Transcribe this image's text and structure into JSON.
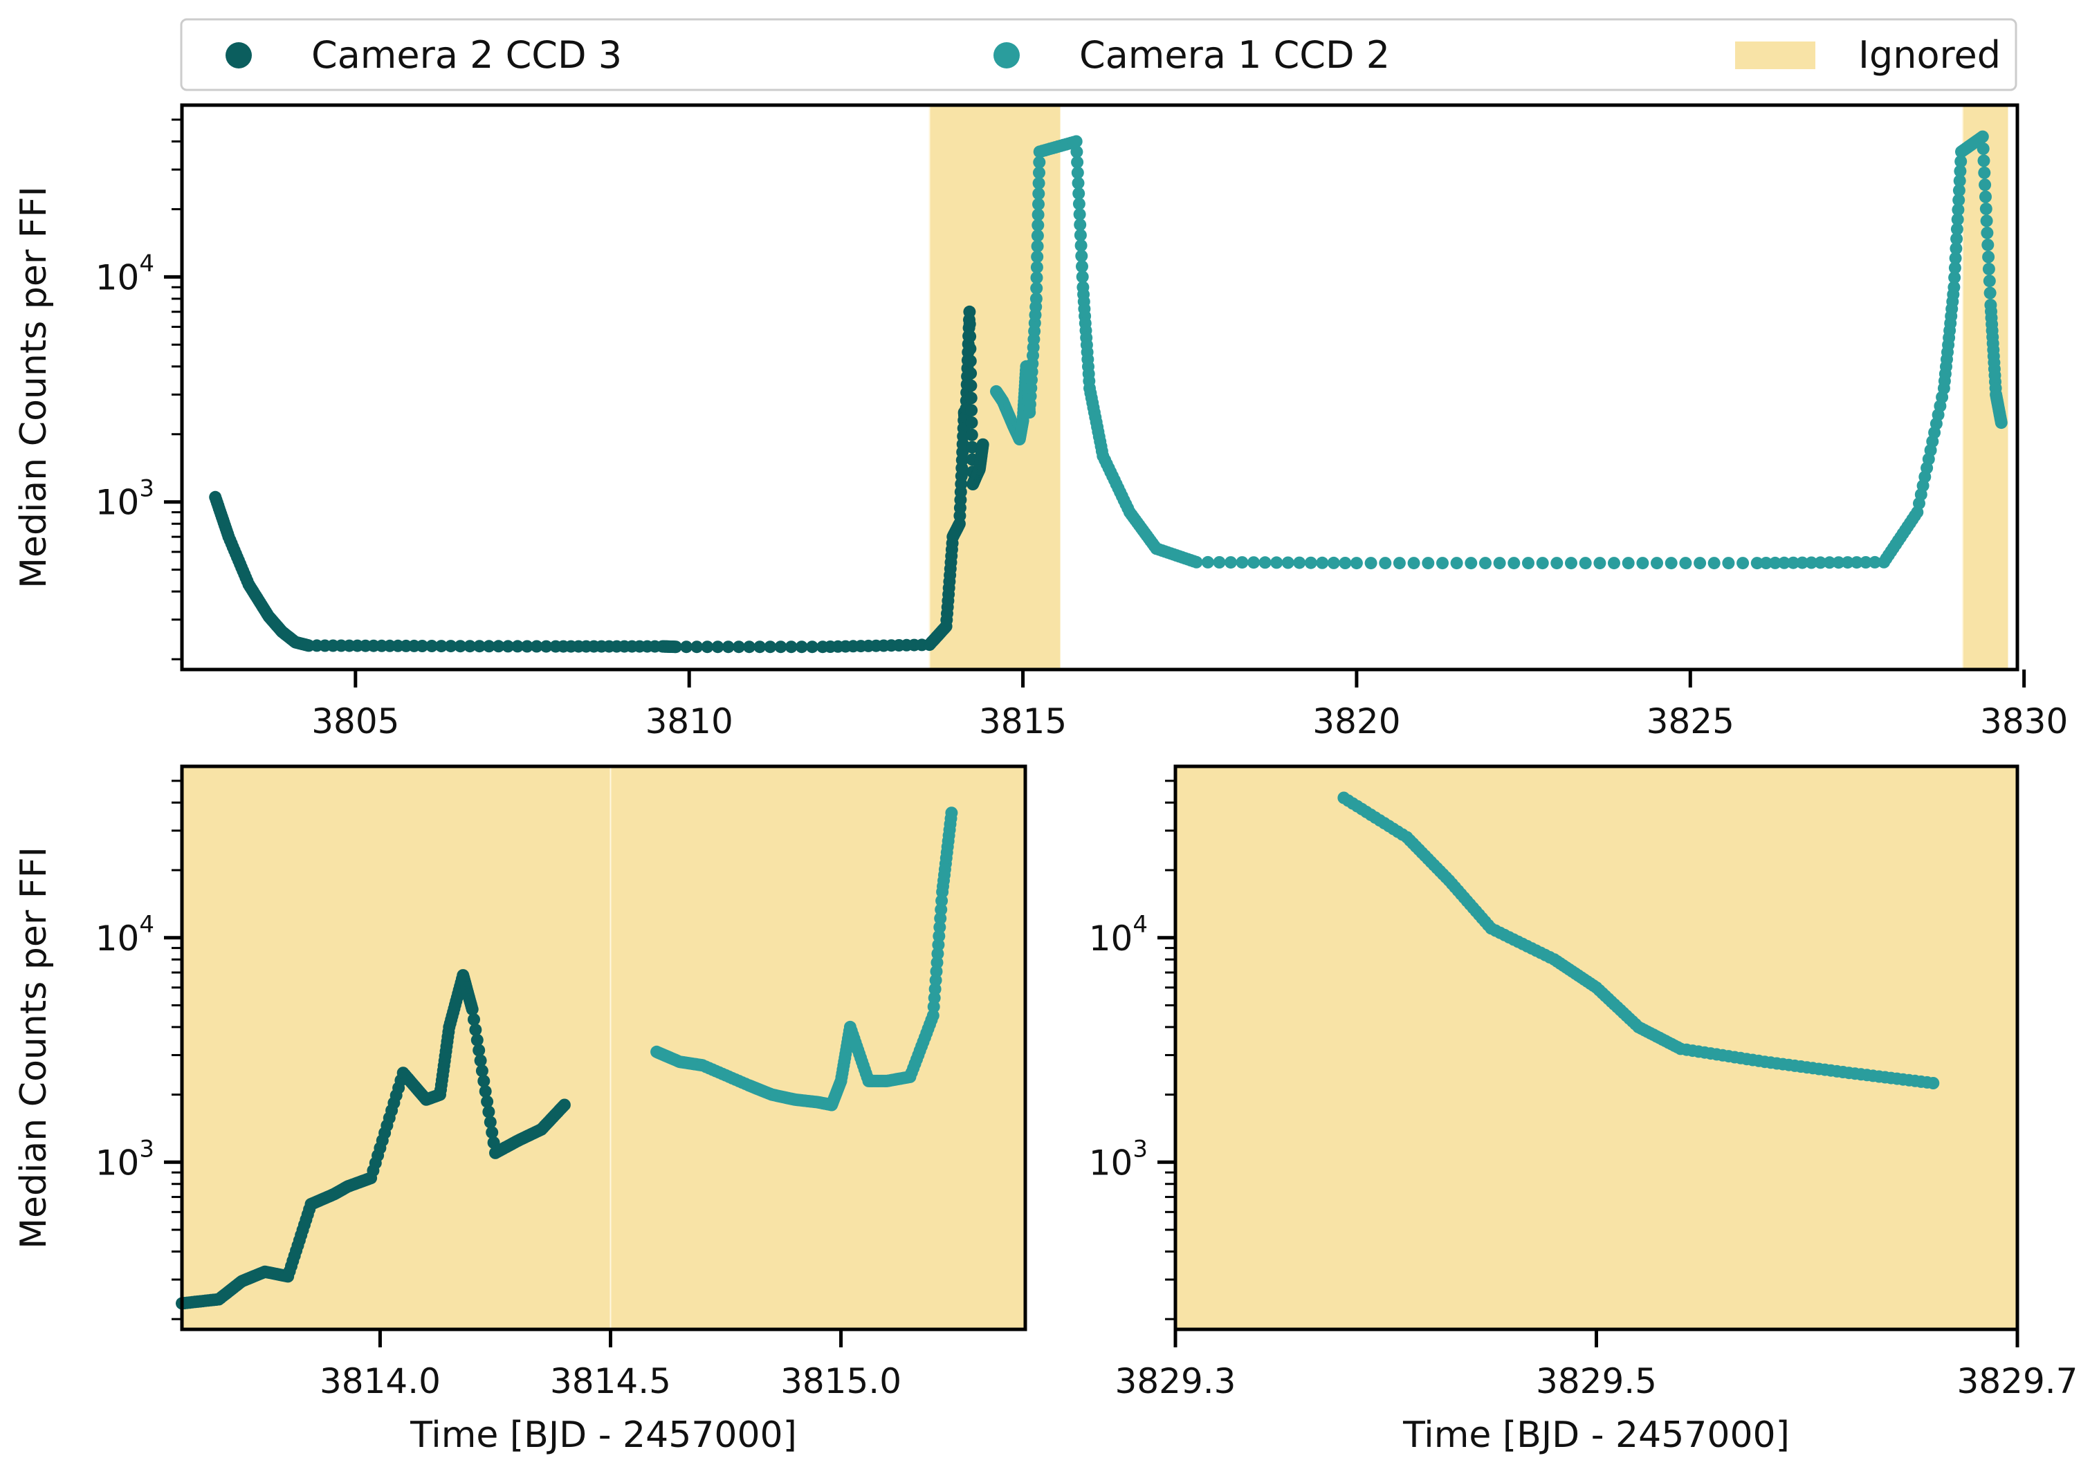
{
  "legend": {
    "items": [
      {
        "label": "Camera 2 CCD 3",
        "kind": "marker",
        "color": "#0b5e5e"
      },
      {
        "label": "Camera 1 CCD 2",
        "kind": "marker",
        "color": "#2a9d9d"
      },
      {
        "label": "Ignored",
        "kind": "patch",
        "color": "#f8e3a6"
      }
    ]
  },
  "colors": {
    "camera2_ccd3": "#0b5e5e",
    "camera1_ccd2": "#2a9d9d",
    "ignored": "#f8e3a6",
    "axes": "#000000"
  },
  "chart_data": [
    {
      "type": "scatter",
      "panel": "top",
      "ylabel": "Median Counts per FFI",
      "xlabel": "",
      "yscale": "log",
      "xlim": [
        3802.4,
        3829.9
      ],
      "ylim": [
        180,
        58000
      ],
      "xticks": [
        3805,
        3810,
        3815,
        3820,
        3825,
        3830
      ],
      "yticks": [
        {
          "value": 1000,
          "base": "10",
          "exp": "3"
        },
        {
          "value": 10000,
          "base": "10",
          "exp": "4"
        }
      ],
      "ignored_ranges": [
        [
          3813.6,
          3815.56
        ],
        [
          3829.08,
          3829.76
        ]
      ],
      "series": [
        {
          "name": "Camera 2 CCD 3",
          "color": "#0b5e5e",
          "x": [
            3802.9,
            3803.1,
            3803.4,
            3803.7,
            3803.9,
            3804.1,
            3804.3,
            3806,
            3808,
            3809.6,
            3809.8,
            3812,
            3813.6,
            3813.85,
            3813.95,
            3814.05,
            3814.12,
            3814.14,
            3814.2,
            3814.25,
            3814.3,
            3814.35,
            3814.4
          ],
          "y": [
            1050,
            700,
            430,
            310,
            265,
            238,
            230,
            229,
            228,
            228,
            227,
            227,
            232,
            280,
            700,
            800,
            2500,
            2200,
            7000,
            1200,
            1300,
            1400,
            1800
          ]
        },
        {
          "name": "Camera 1 CCD 2",
          "color": "#2a9d9d",
          "x": [
            3814.6,
            3814.7,
            3814.85,
            3814.95,
            3815.0,
            3815.05,
            3815.1,
            3815.2,
            3815.25,
            3815.8,
            3815.9,
            3816.0,
            3816.2,
            3816.6,
            3817.0,
            3817.6,
            3820,
            3823,
            3826,
            3827.9,
            3828.4,
            3828.8,
            3828.95,
            3829.06,
            3829.38,
            3829.5,
            3829.58,
            3829.66
          ],
          "y": [
            3100,
            2800,
            2200,
            1900,
            2300,
            4000,
            2500,
            8000,
            36000,
            40000,
            9000,
            3200,
            1600,
            900,
            620,
            540,
            535,
            535,
            535,
            540,
            900,
            3200,
            9000,
            36000,
            42000,
            7500,
            3000,
            2250
          ]
        }
      ]
    },
    {
      "type": "scatter",
      "panel": "bottom-left",
      "ylabel": "Median Counts per FFI",
      "xlabel": "Time [BJD - 2457000]",
      "yscale": "log",
      "xlim": [
        3813.57,
        3815.4
      ],
      "ylim": [
        180,
        58000
      ],
      "xticks": [
        "3814.0",
        "3814.5",
        "3815.0"
      ],
      "yticks": [
        {
          "value": 1000,
          "base": "10",
          "exp": "3"
        },
        {
          "value": 10000,
          "base": "10",
          "exp": "4"
        }
      ],
      "ignored_ranges": [
        [
          3813.57,
          3814.5
        ],
        [
          3814.5,
          3815.4
        ]
      ],
      "series": [
        {
          "name": "Camera 2 CCD 3",
          "color": "#0b5e5e",
          "x": [
            3813.57,
            3813.65,
            3813.7,
            3813.75,
            3813.8,
            3813.85,
            3813.9,
            3813.93,
            3813.98,
            3814.05,
            3814.1,
            3814.13,
            3814.15,
            3814.18,
            3814.2,
            3814.25,
            3814.3,
            3814.35,
            3814.4
          ],
          "y": [
            235,
            245,
            295,
            325,
            310,
            650,
            720,
            780,
            850,
            2500,
            1900,
            2000,
            4000,
            6800,
            4800,
            1100,
            1250,
            1400,
            1800
          ]
        },
        {
          "name": "Camera 1 CCD 2",
          "color": "#2a9d9d",
          "x": [
            3814.6,
            3814.65,
            3814.7,
            3814.8,
            3814.85,
            3814.9,
            3814.95,
            3814.98,
            3815.0,
            3815.02,
            3815.06,
            3815.1,
            3815.15,
            3815.2,
            3815.22,
            3815.24
          ],
          "y": [
            3100,
            2800,
            2700,
            2200,
            2000,
            1900,
            1850,
            1800,
            2300,
            4000,
            2300,
            2300,
            2400,
            4500,
            16000,
            36000
          ]
        }
      ]
    },
    {
      "type": "scatter",
      "panel": "bottom-right",
      "ylabel": "",
      "xlabel": "Time [BJD - 2457000]",
      "yscale": "log",
      "xlim": [
        3829.3,
        3829.7
      ],
      "ylim": [
        180,
        58000
      ],
      "xticks": [
        "3829.3",
        "3829.5",
        "3829.7"
      ],
      "yticks": [
        {
          "value": 1000,
          "base": "10",
          "exp": "3"
        },
        {
          "value": 10000,
          "base": "10",
          "exp": "4"
        }
      ],
      "ignored_ranges": [
        [
          3829.3,
          3829.7
        ]
      ],
      "series": [
        {
          "name": "Camera 1 CCD 2",
          "color": "#2a9d9d",
          "x": [
            3829.38,
            3829.41,
            3829.43,
            3829.45,
            3829.48,
            3829.5,
            3829.52,
            3829.54,
            3829.58,
            3829.62,
            3829.66
          ],
          "y": [
            42000,
            28000,
            18000,
            11000,
            8000,
            6000,
            4000,
            3200,
            2800,
            2500,
            2250
          ]
        }
      ]
    }
  ]
}
